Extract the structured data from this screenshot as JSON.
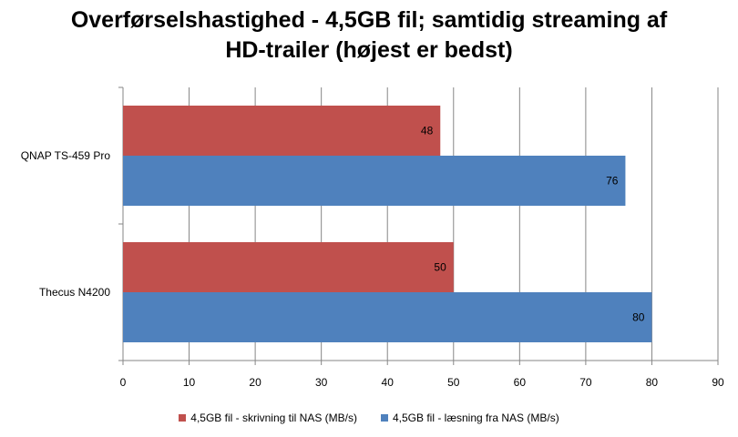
{
  "chart_data": {
    "type": "bar",
    "orientation": "horizontal",
    "title_lines": [
      "Overførselshastighed - 4,5GB fil; samtidig streaming af",
      "HD-trailer (højest er bedst)"
    ],
    "categories": [
      "QNAP TS-459  Pro",
      "Thecus N4200"
    ],
    "series": [
      {
        "name": "4,5GB fil - skrivning til NAS (MB/s)",
        "color": "#C0504D",
        "values": [
          48,
          50
        ]
      },
      {
        "name": "4,5GB fil - læsning fra NAS (MB/s)",
        "color": "#4F81BD",
        "values": [
          76,
          80
        ]
      }
    ],
    "xlim": [
      0,
      90
    ],
    "xticks": [
      0,
      10,
      20,
      30,
      40,
      50,
      60,
      70,
      80,
      90
    ],
    "grid": true,
    "legend": "bottom"
  }
}
